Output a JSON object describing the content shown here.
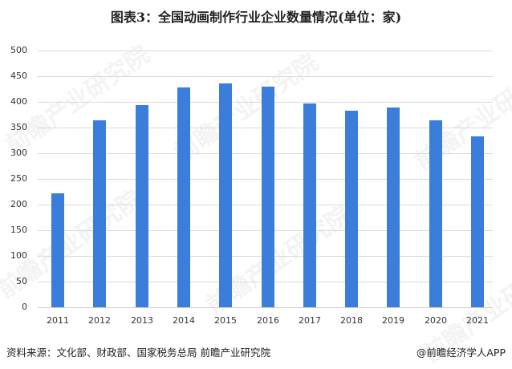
{
  "chart_data": {
    "type": "bar",
    "title": "图表3：全国动画制作行业企业数量情况(单位：家)",
    "xlabel": "",
    "ylabel": "",
    "categories": [
      "2011",
      "2012",
      "2013",
      "2014",
      "2015",
      "2016",
      "2017",
      "2018",
      "2019",
      "2020",
      "2021"
    ],
    "values": [
      222,
      364,
      394,
      428,
      436,
      430,
      397,
      383,
      389,
      364,
      333
    ],
    "ylim": [
      0,
      500
    ],
    "yticks": [
      0,
      50,
      100,
      150,
      200,
      250,
      300,
      350,
      400,
      450,
      500
    ],
    "grid": true,
    "legend": "none",
    "bar_color": "#3a7ddb"
  },
  "header": {
    "title": "图表3：全国动画制作行业企业数量情况(单位：家)"
  },
  "yaxis": {
    "ticks": [
      "500",
      "450",
      "400",
      "350",
      "300",
      "250",
      "200",
      "150",
      "100",
      "50",
      "0"
    ]
  },
  "footer": {
    "source": "资料来源：文化部、财政部、国家税务总局 前瞻产业研究院",
    "credit": "@前瞻经济学人APP"
  },
  "watermark": {
    "text": "前瞻产业研究院"
  }
}
